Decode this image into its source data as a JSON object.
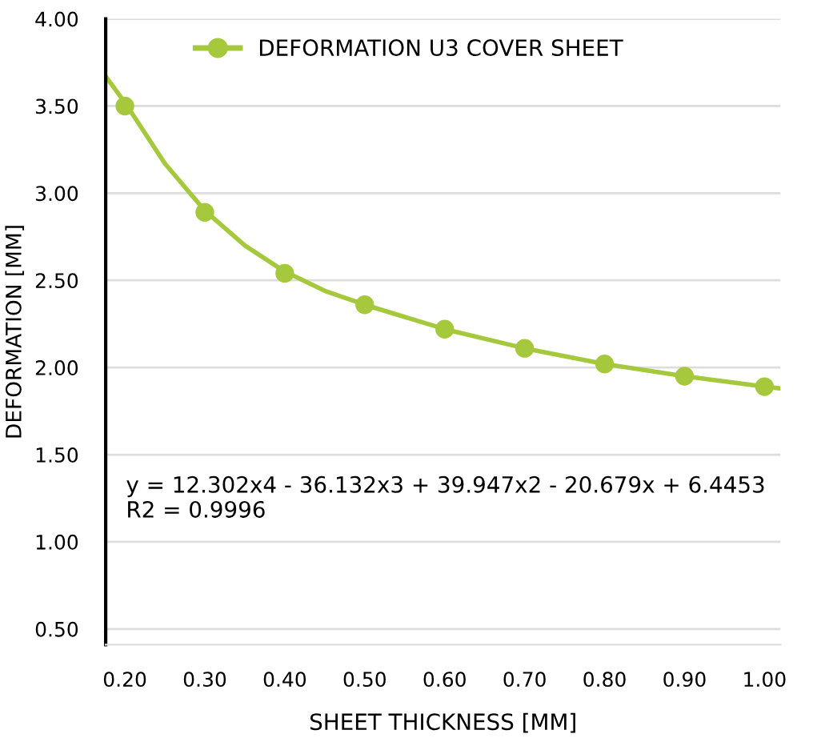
{
  "chart_data": {
    "type": "scatter",
    "xlabel": "SHEET THICKNESS [MM]",
    "ylabel": "DEFORMATION [MM]",
    "xlim": [
      0.176,
      1.02
    ],
    "ylim": [
      0.41,
      4.0
    ],
    "xticks": [
      {
        "value": 0.2,
        "label": "0.20"
      },
      {
        "value": 0.3,
        "label": "0.30"
      },
      {
        "value": 0.4,
        "label": "0.40"
      },
      {
        "value": 0.5,
        "label": "0.50"
      },
      {
        "value": 0.6,
        "label": "0.60"
      },
      {
        "value": 0.7,
        "label": "0.70"
      },
      {
        "value": 0.8,
        "label": "0.80"
      },
      {
        "value": 0.9,
        "label": "0.90"
      },
      {
        "value": 1.0,
        "label": "1.00"
      }
    ],
    "yticks": [
      {
        "value": 0.5,
        "label": "0.50"
      },
      {
        "value": 1.0,
        "label": "1.00"
      },
      {
        "value": 1.5,
        "label": "1.50"
      },
      {
        "value": 2.0,
        "label": "2.00"
      },
      {
        "value": 2.5,
        "label": "2.50"
      },
      {
        "value": 3.0,
        "label": "3.00"
      },
      {
        "value": 3.5,
        "label": "3.50"
      },
      {
        "value": 4.0,
        "label": "4.00"
      }
    ],
    "grid": "y",
    "legend": "top",
    "series": [
      {
        "name": "DEFORMATION U3 COVER SHEET",
        "marker": "circle",
        "color": "#a5c83c",
        "x": [
          0.2,
          0.3,
          0.4,
          0.5,
          0.6,
          0.7,
          0.8,
          0.9,
          1.0
        ],
        "values": [
          3.5,
          2.89,
          2.54,
          2.36,
          2.22,
          2.11,
          2.02,
          1.95,
          1.89
        ]
      },
      {
        "type": "line",
        "marker": "none",
        "color": "#a5c83c",
        "x": [
          0.176,
          0.2,
          0.25,
          0.3,
          0.35,
          0.4,
          0.45,
          0.5,
          0.6,
          0.7,
          0.8,
          0.9,
          1.0,
          1.02
        ],
        "values": [
          3.67,
          3.52,
          3.17,
          2.9,
          2.7,
          2.55,
          2.44,
          2.36,
          2.22,
          2.11,
          2.02,
          1.95,
          1.89,
          1.88
        ]
      }
    ],
    "annotations": [
      "y = 12.302x4 - 36.132x3 + 39.947x2 - 20.679x + 6.4453\nR2 = 0.9996"
    ]
  }
}
